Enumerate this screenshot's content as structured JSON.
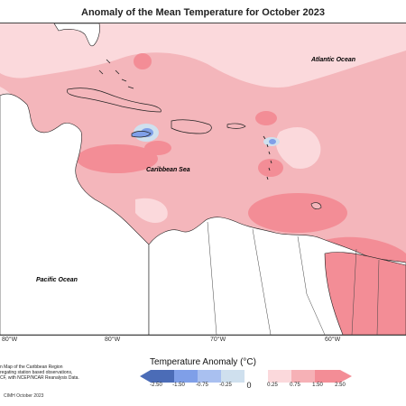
{
  "title": "Anomaly of the Mean Temperature for October 2023",
  "labels": {
    "atlantic": "Atlantic Ocean",
    "caribbean": "Caribbean Sea",
    "pacific": "Pacific Ocean"
  },
  "longitudes": [
    "80°W",
    "80°W",
    "70°W",
    "60°W"
  ],
  "caption": {
    "line1": "n Map of the Caribbean Region",
    "line2": "regating station based observations,",
    "line3": "CF, with NCEP/NCAR Reanalysis Data."
  },
  "credit": "CIMH October 2023",
  "legend": {
    "title": "Temperature Anomaly (°C)",
    "ticks": [
      "-2.50",
      "-1.50",
      "-0.75",
      "-0.25",
      "0",
      "0.25",
      "0.75",
      "1.50",
      "2.50"
    ],
    "colors": [
      "#4b6cb7",
      "#7f9fe8",
      "#a9c0f0",
      "#cfe0ee",
      "#ffffff",
      "#fbd9dc",
      "#f6b1b6",
      "#f38d96"
    ]
  },
  "colors": {
    "base_anomaly": "#f4b6bb",
    "light_anomaly": "#fbd9dc",
    "strong_anomaly": "#f38d96",
    "negative_anomaly": "#9bb6dd",
    "land": "#ffffff"
  }
}
